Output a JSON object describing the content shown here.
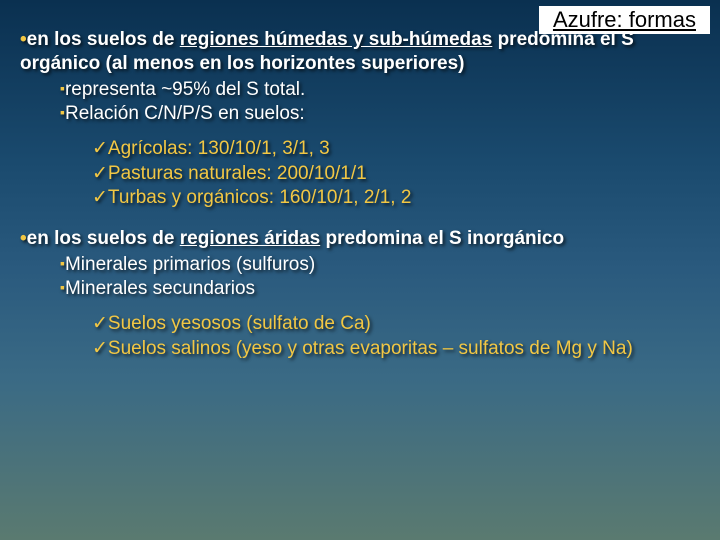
{
  "title": "Azufre: formas",
  "point1": {
    "prefix": "en los suelos de ",
    "underlined": "regiones húmedas y sub-húmedas",
    "rest": " predomina el S orgánico (al menos en los horizontes superiores)"
  },
  "point1_subs": {
    "a": "representa ~95% del S total.",
    "b": "Relación C/N/P/S en suelos:"
  },
  "ratios": {
    "a": "Agrícolas: 130/10/1, 3/1, 3",
    "b": "Pasturas naturales: 200/10/1/1",
    "c": "Turbas y orgánicos: 160/10/1, 2/1, 2"
  },
  "point2": {
    "prefix": "en los suelos de ",
    "underlined": "regiones áridas",
    "rest": " predomina el S inorgánico"
  },
  "point2_subs": {
    "a": "Minerales primarios (sulfuros)",
    "b": "Minerales secundarios"
  },
  "point2_subsubs": {
    "a": "Suelos yesosos (sulfato de Ca)",
    "b": "Suelos salinos  (yeso y otras evaporitas – sulfatos de  Mg y Na)"
  },
  "colors": {
    "accent": "#f2c744",
    "text": "#ffffff",
    "titlebox_bg": "#ffffff",
    "titlebox_text": "#000000"
  },
  "bullets": {
    "dot": "•",
    "square": "▪",
    "check": "✓"
  }
}
